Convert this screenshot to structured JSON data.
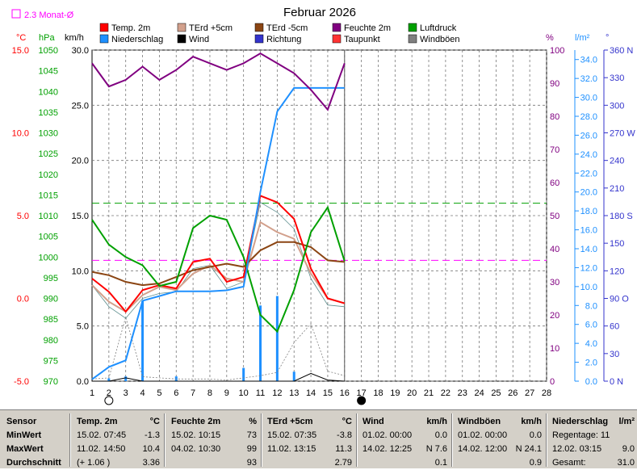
{
  "chart_data": {
    "type": "line",
    "title": "Februar 2026",
    "monthly_mean_label": "2.3 Monat-Ø",
    "x_ticks": [
      "1",
      "2",
      "3",
      "4",
      "5",
      "6",
      "7",
      "8",
      "9",
      "10",
      "11",
      "12",
      "13",
      "14",
      "15",
      "16",
      "17",
      "18",
      "19",
      "20",
      "21",
      "22",
      "23",
      "24",
      "25",
      "26",
      "27",
      "28"
    ],
    "legend": [
      {
        "name": "Temp. 2m",
        "color": "#ff0000"
      },
      {
        "name": "TErd +5cm",
        "color": "#d2a08c"
      },
      {
        "name": "TErd -5cm",
        "color": "#8b4513"
      },
      {
        "name": "Feuchte 2m",
        "color": "#800080"
      },
      {
        "name": "Luftdruck",
        "color": "#00a000"
      },
      {
        "name": "Niederschlag",
        "color": "#1e90ff"
      },
      {
        "name": "Wind",
        "color": "#000000"
      },
      {
        "name": "Richtung",
        "color": "#3333cc"
      },
      {
        "name": "Taupunkt",
        "color": "#ff3333"
      },
      {
        "name": "Windböen",
        "color": "#808080"
      }
    ],
    "axes": {
      "temp": {
        "unit": "°C",
        "min": -5,
        "max": 15,
        "ticks": [
          "15.0",
          "10.0",
          "5.0",
          "0.0",
          "-5.0"
        ],
        "color": "#ff0000"
      },
      "pressure": {
        "unit": "hPa",
        "min": 970,
        "max": 1050,
        "ticks": [
          "1050",
          "1045",
          "1040",
          "1035",
          "1030",
          "1025",
          "1020",
          "1015",
          "1010",
          "1005",
          "1000",
          "995",
          "990",
          "985",
          "980",
          "975",
          "970"
        ],
        "color": "#00a000"
      },
      "wind": {
        "unit": "km/h",
        "min": 0,
        "max": 30,
        "ticks": [
          "30.0",
          "25.0",
          "20.0",
          "15.0",
          "10.0",
          "5.0",
          "0.0"
        ],
        "color": "#000000"
      },
      "humidity": {
        "unit": "%",
        "min": 0,
        "max": 100,
        "ticks": [
          "100",
          "90",
          "80",
          "70",
          "60",
          "50",
          "40",
          "30",
          "20",
          "10",
          "0"
        ],
        "color": "#800080"
      },
      "rain": {
        "unit": "l/m²",
        "min": 0,
        "max": 35,
        "ticks": [
          "34.0",
          "32.0",
          "30.0",
          "28.0",
          "26.0",
          "24.0",
          "22.0",
          "20.0",
          "18.0",
          "16.0",
          "14.0",
          "12.0",
          "10.0",
          "8.0",
          "6.0",
          "4.0",
          "2.0",
          "0.0"
        ],
        "color": "#1e90ff"
      },
      "direction": {
        "unit": "°",
        "min": 0,
        "max": 360,
        "ticks": [
          "360 N",
          "330",
          "300",
          "270 W",
          "240",
          "210",
          "180 S",
          "150",
          "120",
          "90 O",
          "60",
          "30",
          "0 N"
        ],
        "color": "#3333cc"
      }
    },
    "series": [
      {
        "name": "Feuchte 2m",
        "axis": "humidity",
        "days": [
          1,
          2,
          3,
          4,
          5,
          6,
          7,
          8,
          9,
          10,
          11,
          12,
          13,
          14,
          15,
          16
        ],
        "values": [
          96,
          89,
          91,
          95,
          91,
          94,
          98,
          96,
          94,
          96,
          99,
          96,
          93,
          88,
          82,
          96
        ]
      },
      {
        "name": "Niederschlag",
        "axis": "rain",
        "days": [
          1,
          2,
          3,
          4,
          5,
          6,
          7,
          8,
          9,
          10,
          11,
          12,
          13,
          14,
          15,
          16
        ],
        "values": [
          0.2,
          1.5,
          2.2,
          8.5,
          9.0,
          9.5,
          9.5,
          9.5,
          9.6,
          10.0,
          20.0,
          28.5,
          31.0,
          31.0,
          31.0,
          31.0
        ]
      },
      {
        "name": "Luftdruck",
        "axis": "pressure",
        "days": [
          1,
          2,
          3,
          4,
          5,
          6,
          7,
          8,
          9,
          10,
          11,
          12,
          13,
          14,
          15,
          16
        ],
        "values": [
          1009,
          1003,
          1000,
          998,
          993,
          994,
          1007,
          1010,
          1009,
          1000,
          986,
          982,
          992,
          1006,
          1012,
          999
        ]
      },
      {
        "name": "Temp. 2m",
        "axis": "temp",
        "days": [
          1,
          2,
          3,
          4,
          5,
          6,
          7,
          8,
          9,
          10,
          11,
          12,
          13,
          14,
          15,
          16
        ],
        "values": [
          1.2,
          0.4,
          -0.8,
          0.5,
          0.8,
          0.6,
          2.2,
          2.4,
          1.0,
          1.3,
          6.2,
          5.8,
          4.8,
          1.8,
          0.0,
          -0.3
        ]
      },
      {
        "name": "TErd +5cm",
        "axis": "temp",
        "days": [
          1,
          2,
          3,
          4,
          5,
          6,
          7,
          8,
          9,
          10,
          11,
          12,
          13,
          14,
          15,
          16
        ],
        "values": [
          0.8,
          -0.2,
          -0.8,
          0.2,
          0.7,
          0.5,
          1.5,
          2.0,
          1.2,
          1.0,
          4.6,
          4.0,
          3.6,
          1.5,
          0.0,
          -0.3
        ]
      },
      {
        "name": "TErd -5cm",
        "axis": "temp",
        "days": [
          1,
          2,
          3,
          4,
          5,
          6,
          7,
          8,
          9,
          10,
          11,
          12,
          13,
          14,
          15,
          16
        ],
        "values": [
          1.6,
          1.4,
          1.0,
          0.8,
          0.9,
          1.3,
          1.7,
          1.9,
          2.1,
          1.9,
          2.9,
          3.4,
          3.4,
          3.1,
          2.3,
          2.2
        ]
      },
      {
        "name": "Windböen",
        "axis": "wind",
        "days": [
          1,
          2,
          3,
          4,
          5,
          6,
          7,
          8,
          9,
          10,
          11,
          12,
          13,
          14,
          15,
          16
        ],
        "values": [
          0.2,
          0.3,
          5.8,
          0.4,
          0.3,
          0.2,
          0.2,
          0.2,
          0.1,
          0.3,
          0.5,
          0.8,
          3.5,
          5.2,
          0.9,
          0.5
        ]
      },
      {
        "name": "Wind",
        "axis": "wind",
        "days": [
          1,
          2,
          3,
          4,
          5,
          6,
          7,
          8,
          9,
          10,
          11,
          12,
          13,
          14,
          15,
          16
        ],
        "values": [
          0,
          0,
          0.3,
          0,
          0,
          0,
          0,
          0,
          0,
          0,
          0,
          0,
          0,
          0.7,
          0.1,
          0
        ]
      },
      {
        "name": "Niederschlag-Tag",
        "axis": "rain",
        "days": [
          1,
          2,
          3,
          4,
          5,
          6,
          7,
          8,
          9,
          10,
          11,
          12,
          13,
          14,
          15,
          16
        ],
        "values": [
          0,
          0.3,
          0.5,
          8.5,
          0,
          0.5,
          0,
          0,
          0,
          1.4,
          8.0,
          9.0,
          1.0,
          0,
          0,
          0
        ]
      },
      {
        "name": "Taupunkt",
        "axis": "temp",
        "days": [
          1,
          2,
          3,
          4,
          5,
          6,
          7,
          8,
          9,
          10,
          11,
          12,
          13,
          14,
          15,
          16
        ],
        "values": [
          0.8,
          -0.5,
          -1.2,
          0.0,
          0.3,
          0.4,
          1.8,
          2.0,
          0.6,
          1.0,
          5.8,
          5.2,
          4.2,
          1.2,
          -0.4,
          -0.5
        ]
      }
    ],
    "reference_lines": [
      {
        "axis": "temp",
        "value": 2.3,
        "color": "#ff00ff",
        "style": "dashed"
      },
      {
        "axis": "pressure",
        "value": 1013,
        "color": "#00a000",
        "style": "dashed"
      }
    ],
    "moon": [
      {
        "day": 2,
        "phase": "full"
      },
      {
        "day": 17,
        "phase": "new"
      }
    ]
  },
  "stats": {
    "sensor": {
      "header": "Sensor",
      "rows": [
        "MinWert",
        "MaxWert",
        "Durchschnitt"
      ]
    },
    "temp": {
      "header": "Temp. 2m",
      "unit": "°C",
      "rows": [
        [
          "15.02.  07:45",
          "-1.3"
        ],
        [
          "11.02.  14:50",
          "10.4"
        ],
        [
          "(+ 1.06 )",
          "3.36"
        ]
      ]
    },
    "humidity": {
      "header": "Feuchte 2m",
      "unit": "%",
      "rows": [
        [
          "15.02.  10:15",
          "73"
        ],
        [
          "04.02.  10:30",
          "99"
        ],
        [
          "",
          "93"
        ]
      ]
    },
    "soil": {
      "header": "TErd +5cm",
      "unit": "°C",
      "rows": [
        [
          "15.02.  07:35",
          "-3.8"
        ],
        [
          "11.02.  13:15",
          "11.3"
        ],
        [
          "",
          "2.79"
        ]
      ]
    },
    "wind": {
      "header": "Wind",
      "unit": "km/h",
      "rows": [
        [
          "01.02.  00:00",
          "0.0"
        ],
        [
          "14.02.  12:25",
          "N 7.6"
        ],
        [
          "",
          "0.1"
        ]
      ]
    },
    "gust": {
      "header": "Windböen",
      "unit": "km/h",
      "rows": [
        [
          "01.02.  00:00",
          "0.0"
        ],
        [
          "14.02.  12:00",
          "N 24.1"
        ],
        [
          "",
          "0.9"
        ]
      ]
    },
    "rain": {
      "header": "Niederschlag",
      "unit": "l/m²",
      "rows": [
        [
          "Regentage: 11",
          ""
        ],
        [
          "12.02.  03:15",
          "9.0"
        ],
        [
          "Gesamt:",
          "31.0"
        ]
      ]
    }
  }
}
